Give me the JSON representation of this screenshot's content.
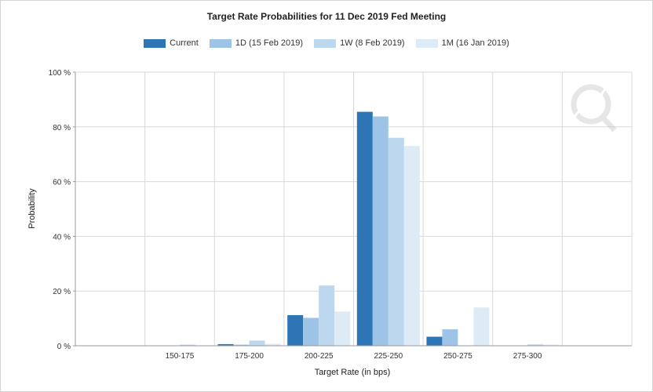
{
  "chart_data": {
    "type": "bar",
    "title": "Target Rate Probabilities for 11 Dec 2019 Fed Meeting",
    "xlabel": "Target Rate (in bps)",
    "ylabel": "Probability",
    "ylim": [
      0,
      100
    ],
    "y_ticks": [
      "0 %",
      "20 %",
      "40 %",
      "60 %",
      "80 %",
      "100 %"
    ],
    "y_tick_values": [
      0,
      20,
      40,
      60,
      80,
      100
    ],
    "categories": [
      "",
      "150-175",
      "175-200",
      "200-225",
      "225-250",
      "250-275",
      "275-300",
      ""
    ],
    "series": [
      {
        "name": "Current",
        "color": "#2e75b6",
        "values": [
          0,
          0,
          0.6,
          11.2,
          85.5,
          3.3,
          0,
          0
        ]
      },
      {
        "name": "1D (15 Feb 2019)",
        "color": "#9dc3e6",
        "values": [
          0,
          0,
          0.4,
          10.2,
          83.8,
          6.0,
          0,
          0
        ]
      },
      {
        "name": "1W (8 Feb 2019)",
        "color": "#bdd7ee",
        "values": [
          0,
          0.4,
          1.9,
          22.0,
          76.0,
          0,
          0.5,
          0
        ]
      },
      {
        "name": "1M (16 Jan 2019)",
        "color": "#ddebf7",
        "values": [
          0,
          0,
          0.7,
          12.5,
          73.0,
          14.0,
          0.4,
          0
        ]
      }
    ],
    "grid": true,
    "legend_position": "top-center"
  }
}
